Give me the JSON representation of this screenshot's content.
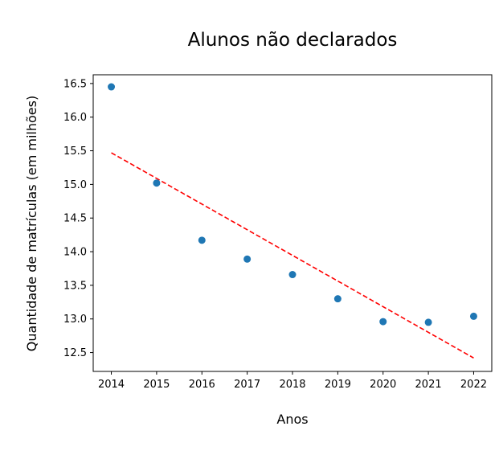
{
  "chart_data": {
    "type": "scatter",
    "title": "Alunos não declarados",
    "xlabel": "Anos",
    "ylabel": "Quantidade de matrículas (em milhões)",
    "x": [
      2014,
      2015,
      2016,
      2017,
      2018,
      2019,
      2020,
      2021,
      2022
    ],
    "series": [
      {
        "values": [
          16.45,
          15.02,
          14.17,
          13.89,
          13.66,
          13.3,
          12.96,
          12.95,
          13.04
        ],
        "color": "#1f77b4"
      }
    ],
    "trendline": {
      "x": [
        2014,
        2022
      ],
      "y": [
        15.47,
        12.42
      ],
      "style": "dashed",
      "color": "#ff0000"
    },
    "xticks": [
      "2014",
      "2015",
      "2016",
      "2017",
      "2018",
      "2019",
      "2020",
      "2021",
      "2022"
    ],
    "yticks": [
      "12.5",
      "13.0",
      "13.5",
      "14.0",
      "14.5",
      "15.0",
      "15.5",
      "16.0",
      "16.5"
    ],
    "xlim": [
      2013.6,
      2022.4
    ],
    "ylim": [
      12.22,
      16.63
    ],
    "grid": false,
    "legend": "none"
  }
}
